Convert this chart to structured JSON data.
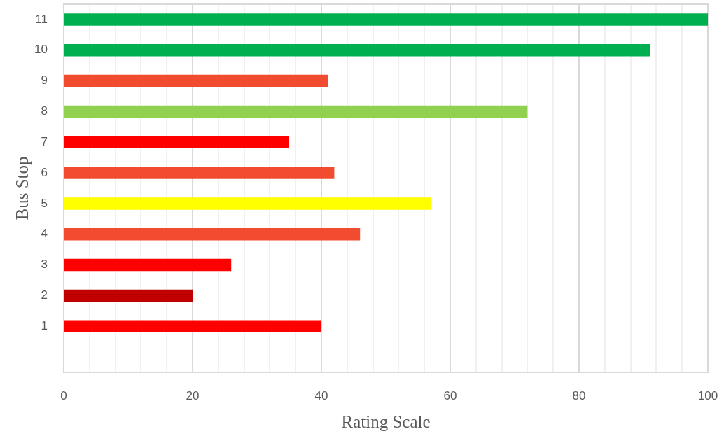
{
  "chart_data": {
    "type": "bar",
    "orientation": "horizontal",
    "xlabel": "Rating Scale",
    "ylabel": "Bus Stop",
    "categories": [
      "11",
      "10",
      "9",
      "8",
      "7",
      "6",
      "5",
      "4",
      "3",
      "2",
      "1",
      null
    ],
    "values": [
      100,
      91,
      41,
      72,
      35,
      42,
      57,
      46,
      26,
      20,
      40,
      null
    ],
    "colors": [
      "#00b050",
      "#00b050",
      "#f14c2f",
      "#92d050",
      "#ff0000",
      "#f14c2f",
      "#ffff00",
      "#f14c2f",
      "#ff0000",
      "#c00000",
      "#ff0000",
      "#ff0000"
    ],
    "xlim": [
      0,
      100
    ],
    "xticks": [
      0,
      {
        "value": 4,
        "label": null
      },
      {
        "value": 8,
        "label": null
      },
      {
        "value": 12,
        "label": null
      },
      {
        "value": 16,
        "label": null
      },
      20,
      {
        "value": 24,
        "label": null
      },
      {
        "value": 28,
        "label": null
      },
      {
        "value": 32,
        "label": null
      },
      {
        "value": 36,
        "label": null
      },
      40,
      {
        "value": 44,
        "label": null
      },
      {
        "value": 48,
        "label": null
      },
      {
        "value": 52,
        "label": null
      },
      {
        "value": 56,
        "label": null
      },
      60,
      {
        "value": 64,
        "label": null
      },
      {
        "value": 68,
        "label": null
      },
      {
        "value": 72,
        "label": null
      },
      {
        "value": 76,
        "label": null
      },
      80,
      {
        "value": 84,
        "label": null
      },
      {
        "value": 88,
        "label": null
      },
      {
        "value": 92,
        "label": null
      },
      {
        "value": 96,
        "label": null
      },
      100
    ],
    "grid": "x"
  }
}
